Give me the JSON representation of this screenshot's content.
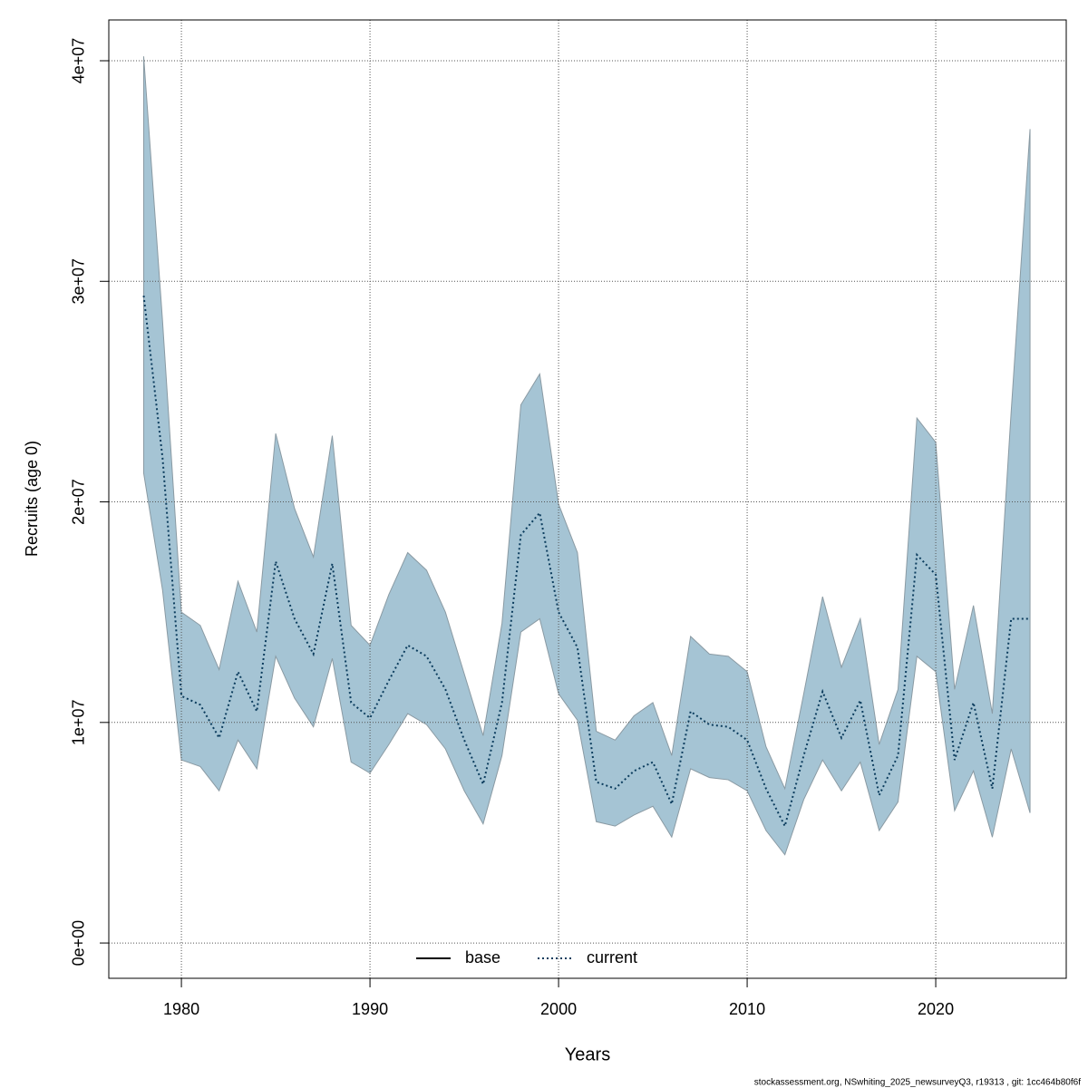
{
  "chart_data": {
    "type": "line",
    "x_label": "Years",
    "y_label": "Recruits (age 0)",
    "footer": "stockassessment.org, NSwhiting_2025_newsurveyQ3, r19313 , git: 1cc464b80f6f",
    "x": [
      1978,
      1979,
      1980,
      1981,
      1982,
      1983,
      1984,
      1985,
      1986,
      1987,
      1988,
      1989,
      1990,
      1991,
      1992,
      1993,
      1994,
      1995,
      1996,
      1997,
      1998,
      1999,
      2000,
      2001,
      2002,
      2003,
      2004,
      2005,
      2006,
      2007,
      2008,
      2009,
      2010,
      2011,
      2012,
      2013,
      2014,
      2015,
      2016,
      2017,
      2018,
      2019,
      2020,
      2021,
      2022,
      2023,
      2024,
      2025
    ],
    "series": [
      {
        "name": "base",
        "color": "#000000",
        "dash": "solid"
      },
      {
        "name": "current",
        "color": "#0b3c5d",
        "dash": "dotted",
        "values": [
          29350000,
          22000000,
          11200000,
          10800000,
          9300000,
          12300000,
          10500000,
          17300000,
          14700000,
          13100000,
          17200000,
          10900000,
          10200000,
          11900000,
          13500000,
          13000000,
          11500000,
          9200000,
          7200000,
          10900000,
          18500000,
          19500000,
          15000000,
          13400000,
          7300000,
          7000000,
          7800000,
          8200000,
          6300000,
          10500000,
          9900000,
          9800000,
          9200000,
          7000000,
          5300000,
          8500000,
          11400000,
          9300000,
          11000000,
          6700000,
          8500000,
          17600000,
          16700000,
          8300000,
          10900000,
          7000000,
          14700000,
          14700000
        ]
      }
    ],
    "band": {
      "color": "#a5c4d4",
      "upper": [
        40200000,
        28200000,
        15000000,
        14400000,
        12400000,
        16400000,
        14100000,
        23100000,
        19700000,
        17500000,
        23000000,
        14400000,
        13500000,
        15800000,
        17700000,
        16900000,
        15000000,
        12200000,
        9400000,
        14500000,
        24400000,
        25800000,
        19900000,
        17700000,
        9600000,
        9200000,
        10300000,
        10900000,
        8500000,
        13900000,
        13100000,
        13000000,
        12300000,
        8900000,
        7000000,
        11300000,
        15700000,
        12500000,
        14700000,
        9000000,
        11500000,
        23800000,
        22700000,
        11500000,
        15300000,
        10400000,
        24100000,
        36900000
      ],
      "lower": [
        21300000,
        16000000,
        8300000,
        8000000,
        6900000,
        9200000,
        7900000,
        13000000,
        11100000,
        9800000,
        12900000,
        8200000,
        7700000,
        9000000,
        10400000,
        9900000,
        8800000,
        6900000,
        5400000,
        8500000,
        14100000,
        14700000,
        11300000,
        10100000,
        5500000,
        5300000,
        5800000,
        6200000,
        4800000,
        7900000,
        7500000,
        7400000,
        6900000,
        5100000,
        4000000,
        6500000,
        8300000,
        6900000,
        8200000,
        5100000,
        6400000,
        13000000,
        12300000,
        6000000,
        7800000,
        4800000,
        8800000,
        5900000
      ]
    },
    "xlim": [
      1976.15,
      2026.92
    ],
    "ylim": [
      -1600000,
      41850000
    ],
    "xticks": [
      1980,
      1990,
      2000,
      2010,
      2020
    ],
    "yticks": [
      {
        "value": 0,
        "label": "0e+00"
      },
      {
        "value": 10000000,
        "label": "1e+07"
      },
      {
        "value": 20000000,
        "label": "2e+07"
      },
      {
        "value": 30000000,
        "label": "3e+07"
      },
      {
        "value": 40000000,
        "label": "4e+07"
      }
    ],
    "grid": true,
    "legend_position": "bottom"
  }
}
